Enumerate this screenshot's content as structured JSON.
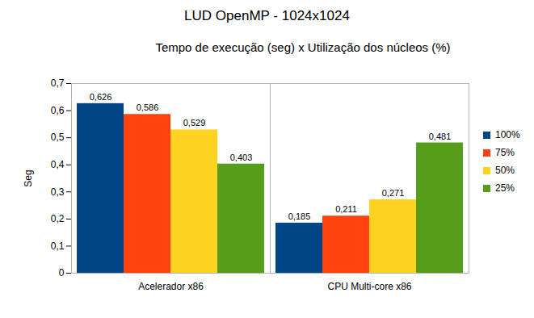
{
  "chart_data": {
    "type": "bar",
    "title": "LUD OpenMP - 1024x1024",
    "subtitle": "Tempo de execução (seg) x Utilização dos núcleos (%)",
    "y_label": "Seg",
    "categories": [
      "Acelerador x86",
      "CPU Multi-core x86"
    ],
    "series": [
      {
        "name": "100%",
        "color": "#004586",
        "values": [
          0.626,
          0.185
        ],
        "value_labels": [
          "0,626",
          "0,185"
        ]
      },
      {
        "name": "75%",
        "color": "#ff420e",
        "values": [
          0.586,
          0.211
        ],
        "value_labels": [
          "0,586",
          "0,211"
        ]
      },
      {
        "name": "50%",
        "color": "#ffd320",
        "values": [
          0.529,
          0.271
        ],
        "value_labels": [
          "0,529",
          "0,271"
        ]
      },
      {
        "name": "25%",
        "color": "#579d1c",
        "values": [
          0.403,
          0.481
        ],
        "value_labels": [
          "0,403",
          "0,481"
        ]
      }
    ],
    "ylim": [
      0,
      0.7
    ],
    "yticks": [
      0,
      {
        "value": 0.1,
        "label": "0,1"
      },
      {
        "value": 0.2,
        "label": "0,2"
      },
      {
        "value": 0.3,
        "label": "0,3"
      },
      {
        "value": 0.4,
        "label": "0,4"
      },
      {
        "value": 0.5,
        "label": "0,5"
      },
      {
        "value": 0.6,
        "label": "0,6"
      },
      {
        "value": 0.7,
        "label": "0,7"
      }
    ],
    "grid": false,
    "legend": "right",
    "data_labels": true
  }
}
